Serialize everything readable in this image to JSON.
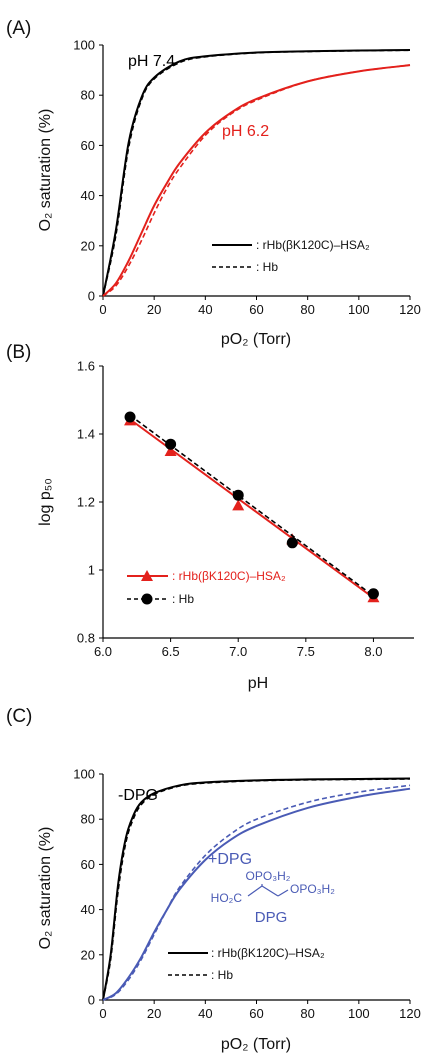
{
  "colors": {
    "black": "#000000",
    "red": "#e3211c",
    "blue": "#4a5bb5"
  },
  "chart_data": [
    {
      "panel": "(A)",
      "type": "line",
      "xlabel": "pO₂ (Torr)",
      "ylabel": "O₂ saturation (%)",
      "xlim": [
        0,
        120
      ],
      "ylim": [
        0,
        100
      ],
      "xticks": [
        0,
        20,
        40,
        60,
        80,
        100,
        120
      ],
      "yticks": [
        0,
        20,
        40,
        60,
        80,
        100
      ],
      "legend": [
        {
          "label": ": rHb(βK120C)–HSA₂",
          "style": "solid"
        },
        {
          "label": ": Hb",
          "style": "dashed"
        }
      ],
      "annotations": [
        {
          "text": "pH 7.4",
          "color": "#000000"
        },
        {
          "text": "pH 6.2",
          "color": "#e3211c"
        }
      ],
      "series": [
        {
          "group": "pH 7.4",
          "style": "solid",
          "color": "#000000",
          "x": [
            0,
            5,
            10,
            15,
            20,
            30,
            40,
            60,
            80,
            100,
            120
          ],
          "y": [
            0,
            26,
            61,
            79,
            87,
            93.5,
            95.5,
            97,
            97.5,
            97.8,
            98
          ]
        },
        {
          "group": "pH 7.4",
          "style": "dashed",
          "color": "#000000",
          "x": [
            0,
            5,
            10,
            15,
            20,
            30,
            40,
            60,
            80,
            100,
            120
          ],
          "y": [
            0,
            24,
            59,
            78,
            86.5,
            93,
            95.3,
            96.9,
            97.4,
            97.7,
            97.9
          ]
        },
        {
          "group": "pH 6.2",
          "style": "solid",
          "color": "#e3211c",
          "x": [
            0,
            5,
            10,
            15,
            20,
            25,
            30,
            40,
            50,
            60,
            80,
            100,
            120
          ],
          "y": [
            0,
            5,
            14,
            25,
            36,
            45,
            53,
            65,
            73,
            78.5,
            85.5,
            89.5,
            92
          ]
        },
        {
          "group": "pH 6.2",
          "style": "dashed",
          "color": "#e3211c",
          "x": [
            0,
            5,
            10,
            15,
            20,
            25,
            30,
            40,
            50,
            60,
            80,
            100,
            120
          ],
          "y": [
            0,
            4,
            12,
            22,
            33,
            43,
            51,
            64,
            72.5,
            78,
            85.5,
            89.5,
            92
          ]
        }
      ]
    },
    {
      "panel": "(B)",
      "type": "scatter",
      "xlabel": "pH",
      "ylabel": "log p₅₀",
      "xlim": [
        6.0,
        8.3
      ],
      "ylim": [
        0.8,
        1.6
      ],
      "xticks": [
        "6.0",
        "6.5",
        "7.0",
        "7.5",
        "8.0"
      ],
      "yticks": [
        "0.8",
        "1",
        "1.2",
        "1.4",
        "1.6"
      ],
      "legend": [
        {
          "label": ": rHb(βK120C)–HSA₂",
          "color": "#e3211c",
          "marker": "triangle",
          "style": "solid"
        },
        {
          "label": ": Hb",
          "color": "#000000",
          "marker": "circle",
          "style": "dashed"
        }
      ],
      "series": [
        {
          "name": "rHb(βK120C)–HSA₂",
          "marker": "triangle",
          "style": "solid",
          "color": "#e3211c",
          "x": [
            6.2,
            6.5,
            7.0,
            7.4,
            8.0
          ],
          "y": [
            1.44,
            1.35,
            1.19,
            1.09,
            0.92
          ],
          "fit": [
            [
              6.2,
              1.443
            ],
            [
              8.0,
              0.918
            ]
          ]
        },
        {
          "name": "Hb",
          "marker": "circle",
          "style": "dashed",
          "color": "#000000",
          "x": [
            6.2,
            6.5,
            7.0,
            7.4,
            8.0
          ],
          "y": [
            1.45,
            1.37,
            1.22,
            1.08,
            0.93
          ],
          "fit": [
            [
              6.2,
              1.455
            ],
            [
              8.0,
              0.924
            ]
          ]
        }
      ]
    },
    {
      "panel": "(C)",
      "type": "line",
      "xlabel": "pO₂ (Torr)",
      "ylabel": "O₂ saturation (%)",
      "xlim": [
        0,
        120
      ],
      "ylim": [
        0,
        100
      ],
      "xticks": [
        0,
        20,
        40,
        60,
        80,
        100,
        120
      ],
      "yticks": [
        0,
        20,
        40,
        60,
        80,
        100
      ],
      "legend": [
        {
          "label": ": rHb(βK120C)–HSA₂",
          "style": "solid"
        },
        {
          "label": ": Hb",
          "style": "dashed"
        }
      ],
      "annotations": [
        {
          "text": "-DPG",
          "color": "#000000"
        },
        {
          "text": "+DPG",
          "color": "#4a5bb5"
        }
      ],
      "structure": {
        "top": "OPO₃H₂",
        "left": "HO₂C",
        "right": "OPO₃H₂",
        "name": "DPG"
      },
      "series": [
        {
          "group": "-DPG",
          "style": "solid",
          "color": "#000000",
          "x": [
            0,
            3,
            6,
            9,
            12,
            15,
            20,
            30,
            40,
            60,
            80,
            100,
            120
          ],
          "y": [
            0,
            20,
            52,
            72,
            82,
            87.5,
            91.5,
            95,
            96.3,
            97.2,
            97.6,
            97.8,
            98
          ]
        },
        {
          "group": "-DPG",
          "style": "dashed",
          "color": "#000000",
          "x": [
            0,
            3,
            6,
            9,
            12,
            15,
            20,
            30,
            40,
            60,
            80,
            100,
            120
          ],
          "y": [
            0,
            18,
            49,
            70,
            80.5,
            86.5,
            91,
            94.7,
            96,
            97,
            97.4,
            97.6,
            97.8
          ]
        },
        {
          "group": "+DPG",
          "style": "solid",
          "color": "#4a5bb5",
          "x": [
            0,
            5,
            10,
            15,
            20,
            25,
            30,
            40,
            50,
            60,
            80,
            100,
            120
          ],
          "y": [
            0,
            3,
            10,
            19,
            30,
            40,
            49,
            62,
            71,
            77,
            85,
            90,
            93.5
          ]
        },
        {
          "group": "+DPG",
          "style": "dashed",
          "color": "#4a5bb5",
          "x": [
            0,
            5,
            10,
            15,
            20,
            25,
            30,
            40,
            50,
            60,
            80,
            100,
            120
          ],
          "y": [
            0,
            2.5,
            9,
            18,
            29,
            40,
            50,
            64,
            73.5,
            80,
            87.5,
            92,
            95
          ]
        }
      ]
    }
  ]
}
